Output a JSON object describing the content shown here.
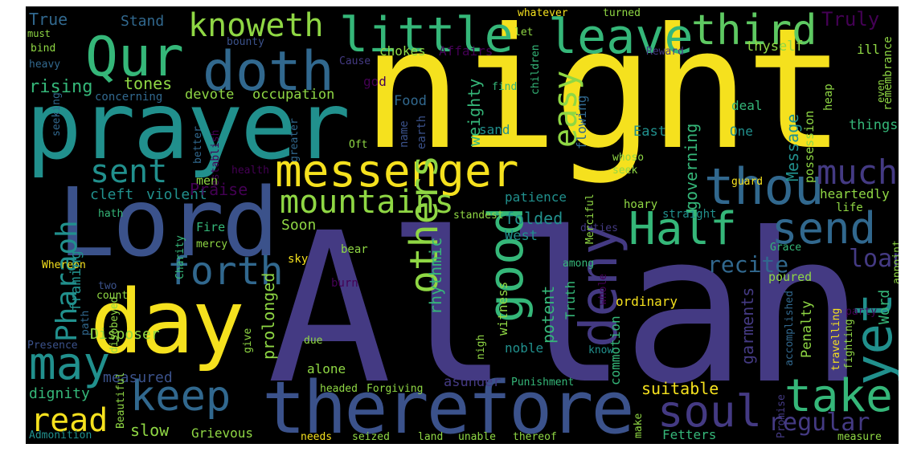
{
  "palette": {
    "background": "#000000",
    "yellow": "#f5e11e",
    "lime": "#8fd744",
    "green": "#35b779",
    "teal": "#21908d",
    "blue": "#31688e",
    "indigo": "#443a83",
    "purple": "#440154"
  },
  "words": {
    "night": "night",
    "allah": "Allah",
    "prayer": "prayer",
    "lord": "Lord",
    "day": "day",
    "therefore": "therefore",
    "messenger": "messenger",
    "qur": "Qur",
    "doth": "doth",
    "little": "little",
    "leave": "leave",
    "third": "third",
    "knoweth": "knoweth",
    "thou": "thou",
    "half": "Half",
    "send": "send",
    "much": "much",
    "take": "take",
    "yet": "yet",
    "soul": "soul",
    "keep": "keep",
    "may": "may",
    "read": "read",
    "forth": "forth",
    "deny": "deny",
    "good": "good",
    "others": "others",
    "mountains": "mountains",
    "sent": "sent",
    "easy": "easy",
    "pharaoh": "Pharaoh",
    "regular": "regular",
    "loan": "loan",
    "recite": "recite",
    "true": "True",
    "stand": "Stand",
    "whatever": "whatever",
    "turned": "turned",
    "truly": "Truly",
    "must": "must",
    "bounty": "bounty",
    "let": "let",
    "children": "children",
    "chokes": "chokes",
    "reward": "Reward",
    "thyself": "thyself",
    "ill": "ill",
    "bind": "bind",
    "affairs": "Affairs",
    "heavy": "heavy",
    "cause": "Cause",
    "rising": "rising",
    "tones": "tones",
    "god": "god",
    "find": "find",
    "heap": "heap",
    "remembrance": "remembrance",
    "concerning": "concerning",
    "devote": "devote",
    "occupation": "occupation",
    "weighty": "weighty",
    "food": "Food",
    "deal": "deal",
    "even": "even",
    "seeking": "seeking",
    "governing": "governing",
    "message": "Message",
    "things": "things",
    "one": "One",
    "sand": "sand",
    "east": "East",
    "name": "name",
    "earth": "earth",
    "flowing": "flowing",
    "possession": "possession",
    "better": "better",
    "greater": "greater",
    "oft": "Oft",
    "establish": "establish",
    "whoso": "whoso",
    "seek": "seek",
    "guard": "guard",
    "health": "health",
    "men": "men",
    "cleft": "cleft",
    "violent": "violent",
    "praise": "Praise",
    "patience": "patience",
    "hoary": "hoary",
    "straight": "straight",
    "heartedly": "heartedly",
    "life": "life",
    "hath": "hath",
    "merciful": "Merciful",
    "standest": "standest",
    "fire": "Fire",
    "soon": "Soon",
    "folded": "folded",
    "mercy": "mercy",
    "charity": "Charity",
    "bear": "bear",
    "duties": "duties",
    "west": "West",
    "grace": "Grace",
    "appoint": "appoint",
    "whereon": "Whereon",
    "sky": "sky",
    "among": "among",
    "poured": "poured",
    "rhythmic": "rhythmic",
    "two": "two",
    "framing": "framing",
    "burn": "burn",
    "witness": "witness",
    "whole": "whole",
    "word": "Word",
    "count": "count",
    "potent": "potent",
    "path": "path",
    "prolonged": "prolonged",
    "truth": "Truth",
    "ordinary": "ordinary",
    "party": "party",
    "disobeyed": "disobeyed",
    "garments": "garments",
    "accomplished": "accomplished",
    "penalty": "Penalty",
    "presence": "Presence",
    "disposer": "Disposer",
    "give": "give",
    "due": "due",
    "nigh": "nigh",
    "noble": "noble",
    "know": "know",
    "commotion": "commotion",
    "travelling": "travelling",
    "fighting": "fighting",
    "measured": "measured",
    "alone": "alone",
    "dignity": "dignity",
    "beautiful": "Beautiful",
    "headed": "headed",
    "forgiving": "Forgiving",
    "asunder": "asunder",
    "punishment": "Punishment",
    "suitable": "suitable",
    "slow": "slow",
    "admonition": "Admonition",
    "grievous": "Grievous",
    "needs": "needs",
    "seized": "seized",
    "land": "land",
    "unable": "unable",
    "thereof": "thereof",
    "make": "make",
    "fetters": "Fetters",
    "promise": "Promise",
    "measure": "measure"
  }
}
